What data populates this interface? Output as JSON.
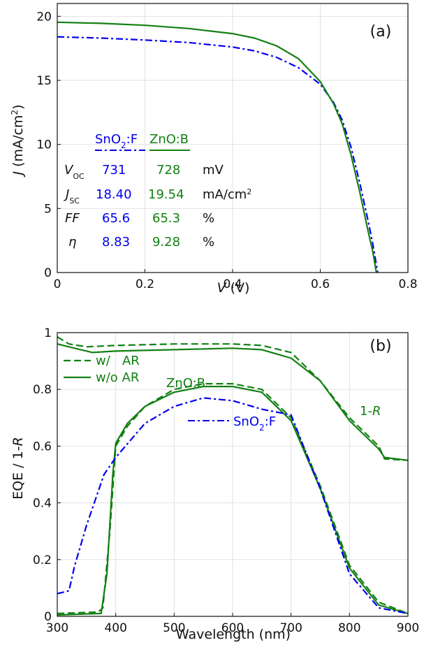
{
  "chart_data": [
    {
      "type": "line",
      "panel_label": "(a)",
      "xlabel": "V (V)",
      "ylabel": "J (mA/cm2)",
      "xlim": [
        0,
        0.8
      ],
      "ylim": [
        0,
        21
      ],
      "xticks": [
        0,
        0.2,
        0.4,
        0.6,
        0.8
      ],
      "xtick_labels": [
        "0",
        "0.2",
        "0.4",
        "0.6",
        "0.8"
      ],
      "yticks": [
        0,
        5,
        10,
        15,
        20
      ],
      "ytick_labels": [
        "0",
        "5",
        "10",
        "15",
        "20"
      ],
      "grid": true,
      "colors": {
        "SnO2:F": "#0000ee",
        "ZnO:B": "#138013"
      },
      "series": [
        {
          "name": "SnO2:F",
          "style": "dash-dot",
          "color": "#0000ee",
          "points": [
            [
              0,
              18.4
            ],
            [
              0.1,
              18.3
            ],
            [
              0.2,
              18.15
            ],
            [
              0.3,
              17.95
            ],
            [
              0.4,
              17.6
            ],
            [
              0.45,
              17.3
            ],
            [
              0.5,
              16.8
            ],
            [
              0.55,
              16.0
            ],
            [
              0.6,
              14.7
            ],
            [
              0.63,
              13.3
            ],
            [
              0.65,
              11.9
            ],
            [
              0.67,
              9.8
            ],
            [
              0.69,
              7.0
            ],
            [
              0.71,
              3.9
            ],
            [
              0.72,
              2.2
            ],
            [
              0.731,
              0
            ]
          ]
        },
        {
          "name": "ZnO:B",
          "style": "solid",
          "color": "#138013",
          "points": [
            [
              0,
              19.54
            ],
            [
              0.1,
              19.45
            ],
            [
              0.2,
              19.3
            ],
            [
              0.3,
              19.05
            ],
            [
              0.4,
              18.65
            ],
            [
              0.45,
              18.3
            ],
            [
              0.5,
              17.7
            ],
            [
              0.55,
              16.7
            ],
            [
              0.6,
              14.9
            ],
            [
              0.63,
              13.2
            ],
            [
              0.65,
              11.6
            ],
            [
              0.67,
              9.2
            ],
            [
              0.69,
              6.3
            ],
            [
              0.71,
              3.1
            ],
            [
              0.72,
              1.6
            ],
            [
              0.728,
              0
            ]
          ]
        }
      ],
      "table": {
        "col_headers": [
          "SnO2:F",
          "ZnO:B"
        ],
        "rows": [
          {
            "label": "V_OC",
            "snof": "731",
            "znob": "728",
            "unit": "mV"
          },
          {
            "label": "J_SC",
            "snof": "18.40",
            "znob": "19.54",
            "unit": "mA/cm2"
          },
          {
            "label": "FF",
            "snof": "65.6",
            "znob": "65.3",
            "unit": "%"
          },
          {
            "label": "η",
            "snof": "8.83",
            "znob": "9.28",
            "unit": "%"
          }
        ]
      }
    },
    {
      "type": "line",
      "panel_label": "(b)",
      "xlabel": "Wavelength (nm)",
      "ylabel": "EQE / 1-R",
      "xlim": [
        300,
        900
      ],
      "ylim": [
        0,
        1
      ],
      "xticks": [
        300,
        400,
        500,
        600,
        700,
        800,
        900
      ],
      "xtick_labels": [
        "300",
        "400",
        "500",
        "600",
        "700",
        "800",
        "900"
      ],
      "yticks": [
        0,
        0.2,
        0.4,
        0.6,
        0.8,
        1
      ],
      "ytick_labels": [
        "0",
        "0.2",
        "0.4",
        "0.6",
        "0.8",
        "1"
      ],
      "grid": true,
      "legend": {
        "position": "top-left",
        "entries": [
          {
            "label": "w/   AR",
            "style": "dashed"
          },
          {
            "label": "w/o AR",
            "style": "solid"
          }
        ]
      },
      "annotations": [
        "ZnO:B",
        "SnO2:F",
        "1-R"
      ],
      "series": [
        {
          "name": "ZnO:B w/ AR",
          "style": "dashed",
          "color": "#138013",
          "points": [
            [
              300,
              0.01
            ],
            [
              370,
              0.015
            ],
            [
              378,
              0.03
            ],
            [
              390,
              0.3
            ],
            [
              400,
              0.6
            ],
            [
              420,
              0.67
            ],
            [
              450,
              0.74
            ],
            [
              500,
              0.8
            ],
            [
              550,
              0.82
            ],
            [
              600,
              0.82
            ],
            [
              650,
              0.8
            ],
            [
              700,
              0.7
            ],
            [
              750,
              0.46
            ],
            [
              800,
              0.18
            ],
            [
              850,
              0.05
            ],
            [
              900,
              0.01
            ]
          ]
        },
        {
          "name": "ZnO:B w/o AR",
          "style": "solid",
          "color": "#138013",
          "points": [
            [
              300,
              0.005
            ],
            [
              375,
              0.01
            ],
            [
              385,
              0.15
            ],
            [
              395,
              0.5
            ],
            [
              400,
              0.61
            ],
            [
              420,
              0.68
            ],
            [
              450,
              0.74
            ],
            [
              500,
              0.79
            ],
            [
              550,
              0.81
            ],
            [
              600,
              0.81
            ],
            [
              650,
              0.79
            ],
            [
              700,
              0.69
            ],
            [
              750,
              0.45
            ],
            [
              800,
              0.17
            ],
            [
              850,
              0.04
            ],
            [
              900,
              0.01
            ]
          ]
        },
        {
          "name": "SnO2:F",
          "style": "dash-dot",
          "color": "#0000ee",
          "points": [
            [
              300,
              0.08
            ],
            [
              320,
              0.09
            ],
            [
              330,
              0.18
            ],
            [
              350,
              0.32
            ],
            [
              380,
              0.5
            ],
            [
              400,
              0.56
            ],
            [
              450,
              0.68
            ],
            [
              500,
              0.74
            ],
            [
              550,
              0.77
            ],
            [
              600,
              0.76
            ],
            [
              650,
              0.73
            ],
            [
              700,
              0.71
            ],
            [
              750,
              0.45
            ],
            [
              800,
              0.15
            ],
            [
              850,
              0.03
            ],
            [
              900,
              0.01
            ]
          ]
        },
        {
          "name": "1-R w/ AR",
          "style": "dashed",
          "color": "#138013",
          "points": [
            [
              300,
              0.985
            ],
            [
              320,
              0.96
            ],
            [
              350,
              0.95
            ],
            [
              400,
              0.955
            ],
            [
              500,
              0.96
            ],
            [
              600,
              0.96
            ],
            [
              650,
              0.955
            ],
            [
              700,
              0.93
            ],
            [
              750,
              0.83
            ],
            [
              800,
              0.7
            ],
            [
              850,
              0.6
            ],
            [
              860,
              0.555
            ],
            [
              900,
              0.55
            ]
          ]
        },
        {
          "name": "1-R w/o AR",
          "style": "solid",
          "color": "#138013",
          "points": [
            [
              300,
              0.96
            ],
            [
              320,
              0.95
            ],
            [
              340,
              0.94
            ],
            [
              360,
              0.93
            ],
            [
              400,
              0.935
            ],
            [
              500,
              0.94
            ],
            [
              600,
              0.945
            ],
            [
              650,
              0.94
            ],
            [
              700,
              0.91
            ],
            [
              750,
              0.83
            ],
            [
              800,
              0.69
            ],
            [
              850,
              0.59
            ],
            [
              860,
              0.56
            ],
            [
              900,
              0.55
            ]
          ]
        }
      ]
    }
  ]
}
